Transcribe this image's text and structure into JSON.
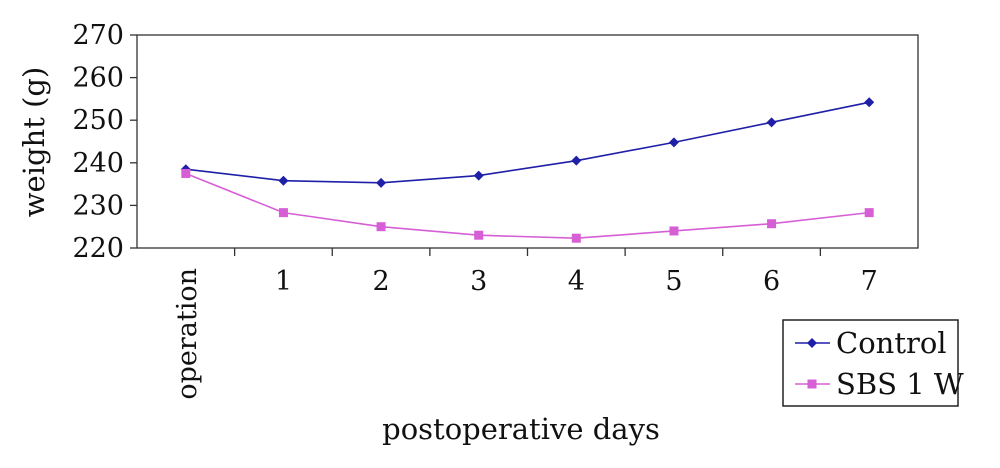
{
  "chart_data": {
    "type": "line",
    "title": "",
    "xlabel": "postoperative days",
    "ylabel": "weight (g)",
    "categories": [
      "operation",
      "1",
      "2",
      "3",
      "4",
      "5",
      "6",
      "7"
    ],
    "ylim": [
      220,
      270
    ],
    "yticks": [
      "220",
      "230",
      "240",
      "250",
      "260",
      "270"
    ],
    "grid": false,
    "legend": {
      "position": "bottom-right"
    },
    "series": [
      {
        "name": "Control",
        "color": "#1f1fa8",
        "marker": "diamond",
        "values": [
          238.5,
          235.8,
          235.3,
          237.0,
          240.5,
          244.8,
          249.5,
          254.2
        ]
      },
      {
        "name": "SBS 1 W",
        "color": "#d65fd6",
        "marker": "square",
        "values": [
          237.5,
          228.3,
          225.0,
          223.0,
          222.3,
          224.0,
          225.7,
          228.3
        ]
      }
    ]
  }
}
